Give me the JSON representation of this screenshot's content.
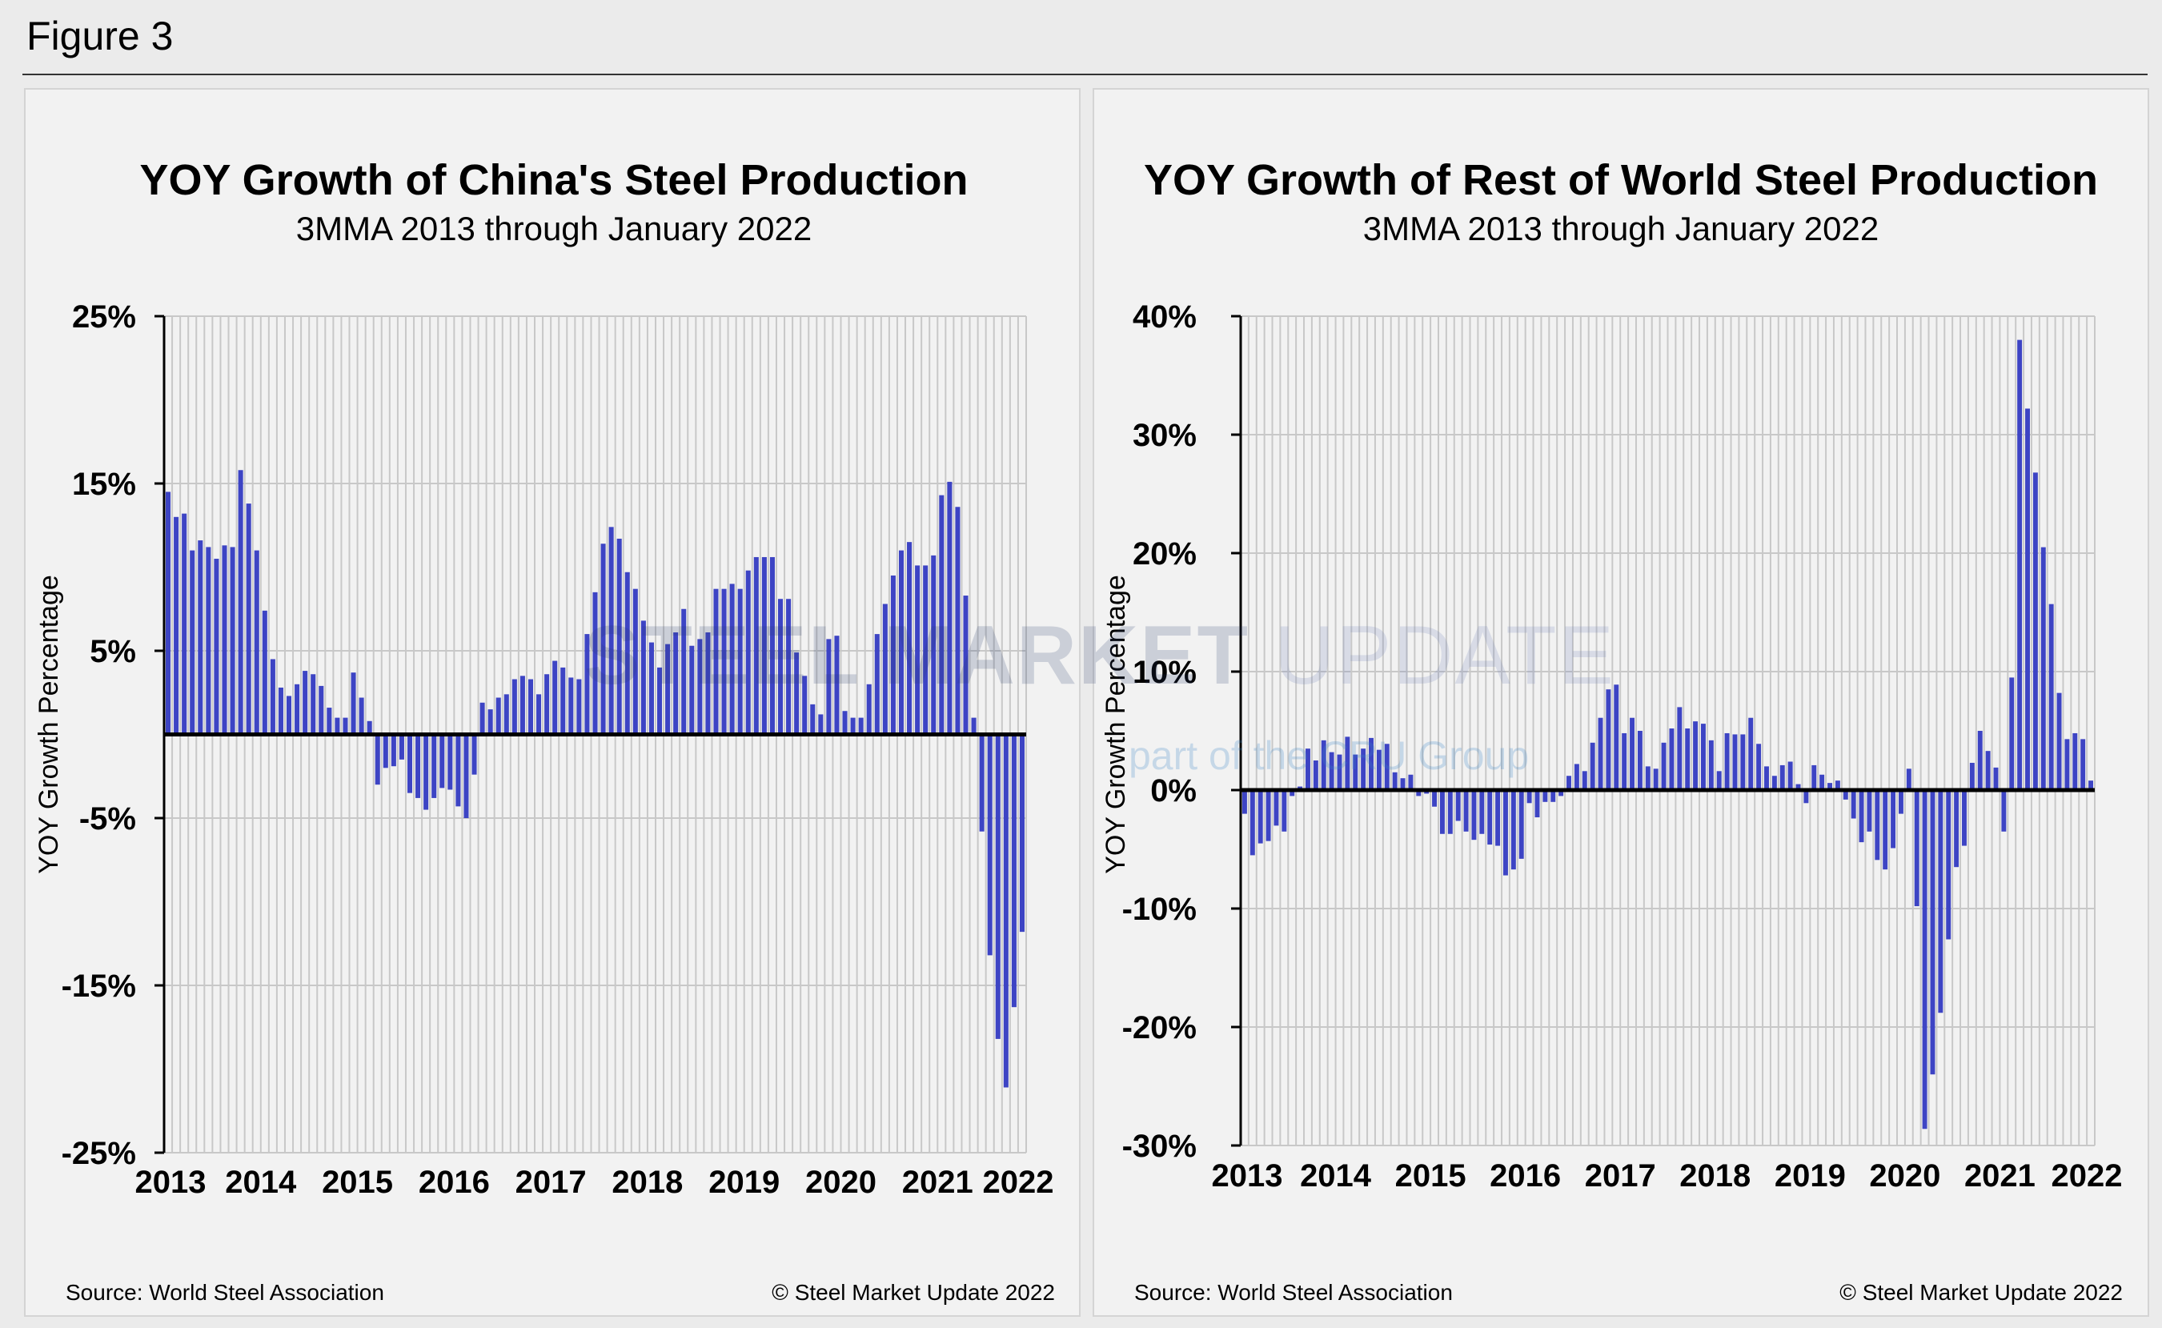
{
  "figure": {
    "label": "Figure 3"
  },
  "watermark": {
    "brand_bold": "STEEL MARKET",
    "brand_light": "UPDATE",
    "tagline": "part of the CRU Group"
  },
  "colors": {
    "bar": "#3d44c4",
    "zero_line": "#000000",
    "grid": "#c8c8c8",
    "panel_bg": "#f2f2f2"
  },
  "chart_data": [
    {
      "type": "bar",
      "title": "YOY Growth of China's Steel Production",
      "subtitle": "3MMA 2013 through January 2022",
      "ylabel": "YOY Growth Percentage",
      "ylim": [
        -25,
        25
      ],
      "yticks": [
        25,
        15,
        5,
        -5,
        -15,
        -25
      ],
      "ytick_labels": [
        "25%",
        "15%",
        "5%",
        "-5%",
        "-15%",
        "-25%"
      ],
      "xtick_labels": [
        "2013",
        "2014",
        "2015",
        "2016",
        "2017",
        "2018",
        "2019",
        "2020",
        "2021",
        "2022"
      ],
      "x_start": "Jan 2013",
      "x_end": "Jan 2022",
      "source": "Source: World Steel Association",
      "copyright": "© Steel Market Update 2022",
      "values": [
        14.5,
        13.0,
        13.2,
        11.0,
        11.6,
        11.2,
        10.5,
        11.3,
        11.2,
        15.8,
        13.8,
        11.0,
        7.4,
        4.5,
        2.8,
        2.3,
        3.0,
        3.8,
        3.6,
        2.9,
        1.6,
        1.0,
        1.0,
        3.7,
        2.2,
        0.8,
        -3.0,
        -2.0,
        -1.9,
        -1.5,
        -3.5,
        -3.8,
        -4.5,
        -3.8,
        -3.2,
        -3.3,
        -4.3,
        -5.0,
        -2.4,
        1.9,
        1.5,
        2.2,
        2.4,
        3.3,
        3.5,
        3.3,
        2.4,
        3.6,
        4.4,
        4.0,
        3.4,
        3.3,
        6.0,
        8.5,
        11.4,
        12.4,
        11.7,
        9.7,
        8.7,
        6.8,
        5.5,
        4.0,
        5.4,
        6.1,
        7.5,
        5.3,
        5.7,
        6.1,
        8.7,
        8.7,
        9.0,
        8.7,
        9.8,
        10.6,
        10.6,
        10.6,
        8.1,
        8.1,
        4.9,
        3.5,
        1.8,
        1.2,
        5.7,
        5.9,
        1.4,
        1.0,
        1.0,
        3.0,
        6.0,
        7.8,
        9.5,
        11.0,
        11.5,
        10.1,
        10.1,
        10.7,
        14.3,
        15.1,
        13.6,
        8.3,
        1.0,
        -5.8,
        -13.2,
        -18.2,
        -21.1,
        -16.3,
        -11.8
      ]
    },
    {
      "type": "bar",
      "title": "YOY Growth of Rest of World Steel Production",
      "subtitle": "3MMA 2013 through January 2022",
      "ylabel": "YOY Growth Percentage",
      "ylim": [
        -30,
        40
      ],
      "yticks": [
        40,
        30,
        20,
        10,
        0,
        -10,
        -20,
        -30
      ],
      "ytick_labels": [
        "40%",
        "30%",
        "20%",
        "10%",
        "0%",
        "-10%",
        "-20%",
        "-30%"
      ],
      "xtick_labels": [
        "2013",
        "2014",
        "2015",
        "2016",
        "2017",
        "2018",
        "2019",
        "2020",
        "2021",
        "2022"
      ],
      "x_start": "Jan 2013",
      "x_end": "Jan 2022",
      "source": "Source: World Steel Association",
      "copyright": "© Steel Market Update 2022",
      "values": [
        -2.0,
        -5.5,
        -4.5,
        -4.3,
        -3.0,
        -3.5,
        -0.5,
        0.3,
        3.5,
        2.5,
        4.2,
        3.2,
        3.0,
        4.5,
        3.0,
        3.5,
        4.4,
        3.4,
        3.9,
        1.5,
        1.0,
        1.3,
        -0.5,
        -0.3,
        -1.4,
        -3.7,
        -3.7,
        -2.6,
        -3.5,
        -4.2,
        -3.7,
        -4.6,
        -4.7,
        -7.2,
        -6.7,
        -5.8,
        -1.1,
        -2.3,
        -1.0,
        -1.0,
        -0.5,
        1.2,
        2.2,
        1.6,
        4.0,
        6.1,
        8.5,
        8.9,
        4.8,
        6.1,
        5.0,
        2.0,
        1.8,
        4.0,
        5.2,
        7.0,
        5.2,
        5.8,
        5.6,
        4.2,
        1.6,
        4.8,
        4.7,
        4.7,
        6.1,
        3.9,
        2.0,
        1.2,
        2.1,
        2.4,
        0.5,
        -1.1,
        2.1,
        1.3,
        0.6,
        0.8,
        -0.8,
        -2.4,
        -4.4,
        -3.5,
        -5.9,
        -6.7,
        -4.9,
        -2.0,
        1.8,
        -9.8,
        -28.6,
        -24.0,
        -18.8,
        -12.6,
        -6.5,
        -4.7,
        2.3,
        5.0,
        3.3,
        1.9,
        -3.5,
        9.5,
        38.0,
        32.2,
        26.8,
        20.5,
        15.7,
        8.2,
        4.3,
        4.8,
        4.3,
        0.8
      ]
    }
  ]
}
